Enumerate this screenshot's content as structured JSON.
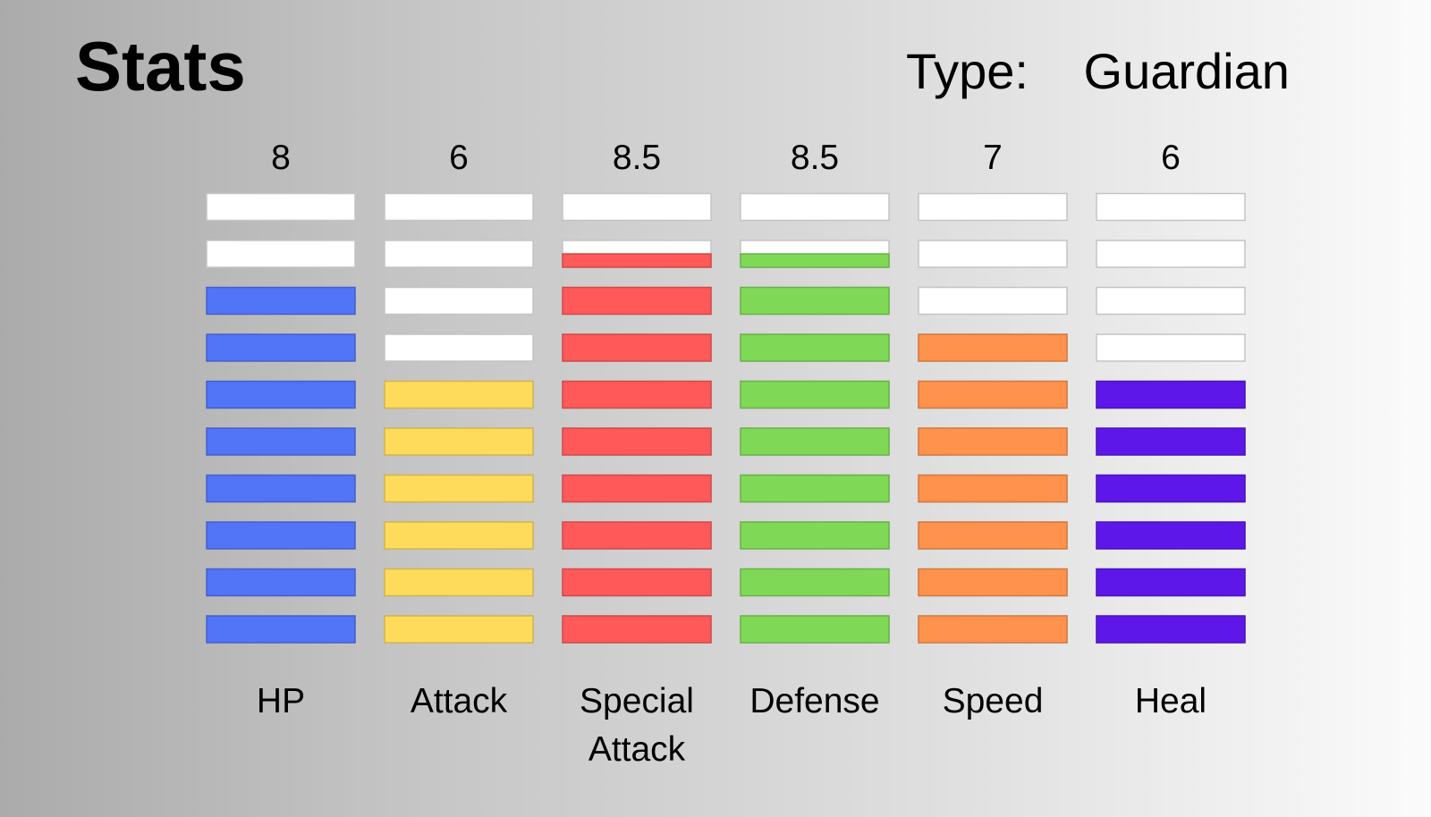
{
  "header": {
    "title": "Stats",
    "type_label": "Type:",
    "type_value": "Guardian"
  },
  "chart_data": {
    "type": "bar",
    "style": "segmented-vertical",
    "segments_per_bar": 10,
    "max_value": 10,
    "categories": [
      [
        "HP"
      ],
      [
        "Attack"
      ],
      [
        "Special",
        "Attack"
      ],
      [
        "Defense"
      ],
      [
        "Speed"
      ],
      [
        "Heal"
      ]
    ],
    "values": [
      8,
      6,
      8.5,
      8.5,
      7,
      6
    ],
    "value_labels": [
      "8",
      "6",
      "8.5",
      "8.5",
      "7",
      "6"
    ],
    "colors": [
      "#5274f7",
      "#ffdb5c",
      "#ff5959",
      "#7fd957",
      "#ff934d",
      "#5d17e8"
    ],
    "empty_color": "#ffffff",
    "ylim": [
      0,
      10
    ]
  }
}
